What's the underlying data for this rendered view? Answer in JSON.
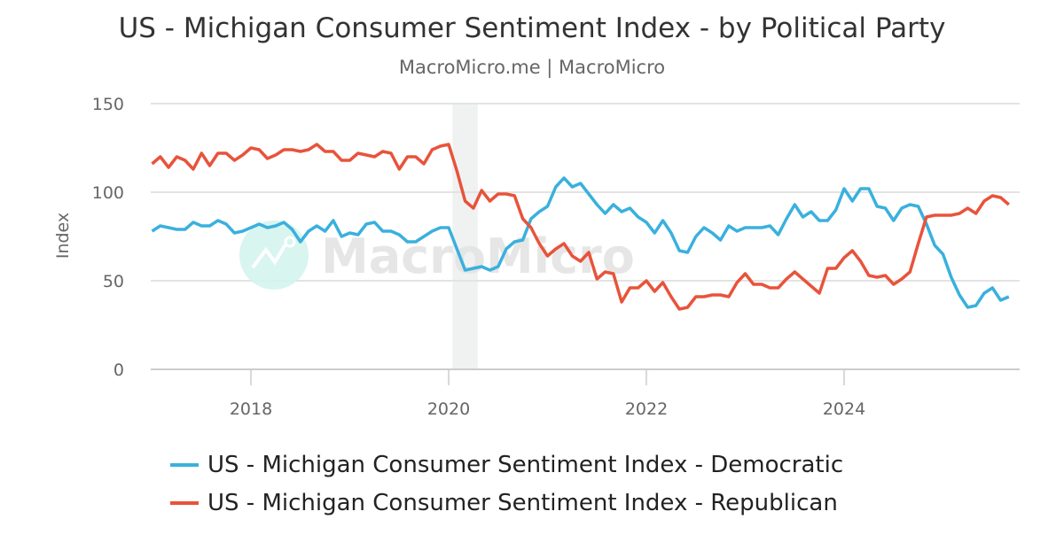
{
  "title": "US - Michigan Consumer Sentiment Index - by Political Party",
  "subtitle": "MacroMicro.me | MacroMicro",
  "watermark": "MacroMicro",
  "chart_data": {
    "type": "line",
    "ylabel": "Index",
    "xlabel": "",
    "ylim": [
      0,
      150
    ],
    "yticks": [
      "0",
      "50",
      "100",
      "150"
    ],
    "xticks": [
      "2018",
      "2020",
      "2022",
      "2024"
    ],
    "grid": true,
    "legend_position": "bottom",
    "x_start": "2017-01",
    "frequency": "monthly",
    "shaded_period": [
      "2020-02",
      "2020-04"
    ],
    "series": [
      {
        "name": "US - Michigan Consumer Sentiment Index - Democratic",
        "color": "#3ab0dd",
        "values": [
          78,
          81,
          80,
          79,
          79,
          83,
          81,
          81,
          84,
          82,
          77,
          78,
          80,
          82,
          80,
          81,
          83,
          79,
          72,
          78,
          81,
          78,
          84,
          75,
          77,
          76,
          82,
          83,
          78,
          78,
          76,
          72,
          72,
          75,
          78,
          80,
          80,
          68,
          56,
          57,
          58,
          56,
          58,
          68,
          72,
          73,
          85,
          89,
          92,
          103,
          108,
          103,
          105,
          99,
          93,
          88,
          93,
          89,
          91,
          86,
          83,
          77,
          84,
          77,
          67,
          66,
          75,
          80,
          77,
          73,
          81,
          78,
          80,
          80,
          80,
          81,
          76,
          85,
          93,
          86,
          89,
          84,
          84,
          90,
          102,
          95,
          102,
          102,
          92,
          91,
          84,
          91,
          93,
          92,
          82,
          70,
          65,
          52,
          42,
          35,
          36,
          43,
          46,
          39,
          41
        ]
      },
      {
        "name": "US - Michigan Consumer Sentiment Index - Republican",
        "color": "#e8533b",
        "values": [
          116,
          120,
          114,
          120,
          118,
          113,
          122,
          115,
          122,
          122,
          118,
          121,
          125,
          124,
          119,
          121,
          124,
          124,
          123,
          124,
          127,
          123,
          123,
          118,
          118,
          122,
          121,
          120,
          123,
          122,
          113,
          120,
          120,
          116,
          124,
          126,
          127,
          112,
          95,
          91,
          101,
          95,
          99,
          99,
          98,
          85,
          80,
          71,
          64,
          68,
          71,
          64,
          61,
          66,
          51,
          55,
          54,
          38,
          46,
          46,
          50,
          44,
          49,
          41,
          34,
          35,
          41,
          41,
          42,
          42,
          41,
          49,
          54,
          48,
          48,
          46,
          46,
          51,
          55,
          51,
          47,
          43,
          57,
          57,
          63,
          67,
          61,
          53,
          52,
          53,
          48,
          51,
          55,
          71,
          86,
          87,
          87,
          87,
          88,
          91,
          88,
          95,
          98,
          97,
          93
        ]
      }
    ]
  }
}
